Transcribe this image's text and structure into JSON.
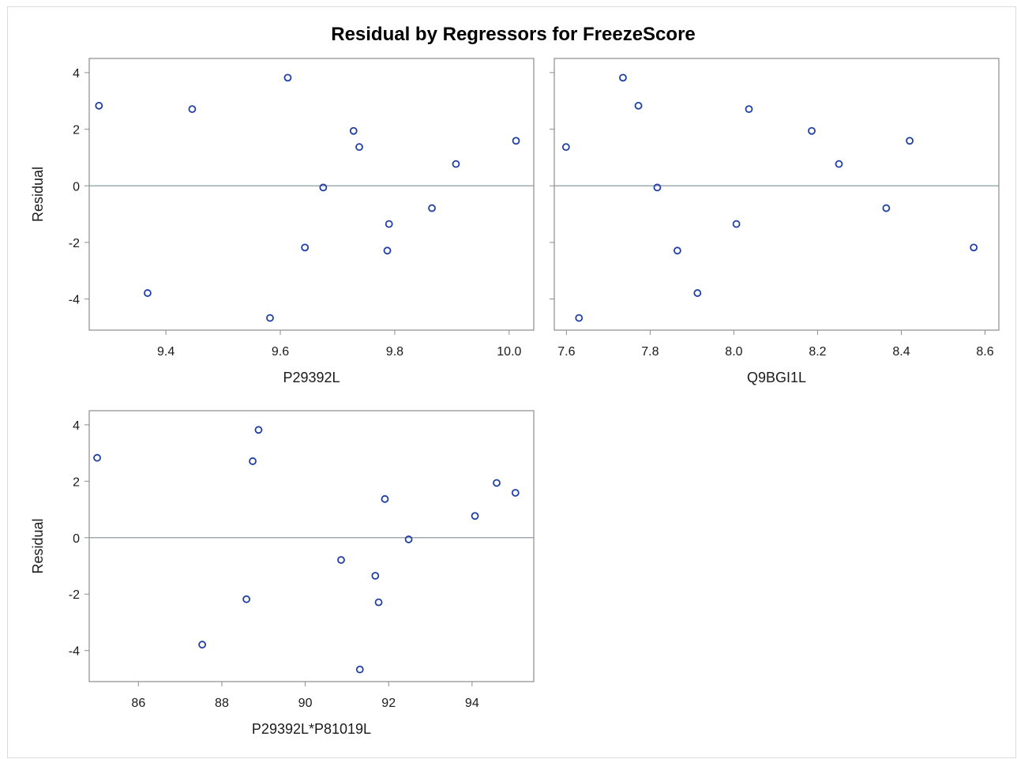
{
  "title": "Residual by Regressors for FreezeScore",
  "colors": {
    "marker": "#1f3fa6",
    "frame": "#8c8c8c",
    "refline": "#8c9aa0",
    "text": "#1a1a1a"
  },
  "chart_data": [
    {
      "type": "scatter",
      "xlabel": "P29392L",
      "ylabel": "Residual",
      "xlim": [
        9.266,
        10.043
      ],
      "ylim": [
        -5.1,
        4.5
      ],
      "xticks": [
        "9.4",
        "9.6",
        "9.8",
        "10.0"
      ],
      "yticks": [
        "4",
        "2",
        "0",
        "-2",
        "-4"
      ],
      "reference_y": 0,
      "points": [
        {
          "x": 9.283,
          "y": 2.83
        },
        {
          "x": 9.368,
          "y": -3.79
        },
        {
          "x": 9.446,
          "y": 2.71
        },
        {
          "x": 9.582,
          "y": -4.67
        },
        {
          "x": 9.613,
          "y": 3.82
        },
        {
          "x": 9.643,
          "y": -2.18
        },
        {
          "x": 9.675,
          "y": -0.06
        },
        {
          "x": 9.728,
          "y": 1.94
        },
        {
          "x": 9.738,
          "y": 1.37
        },
        {
          "x": 9.787,
          "y": -2.29
        },
        {
          "x": 9.79,
          "y": -1.35
        },
        {
          "x": 9.865,
          "y": -0.79
        },
        {
          "x": 9.907,
          "y": 0.77
        },
        {
          "x": 10.012,
          "y": 1.59
        }
      ]
    },
    {
      "type": "scatter",
      "xlabel": "Q9BGI1L",
      "ylabel": "Residual",
      "xlim": [
        7.571,
        8.633
      ],
      "ylim": [
        -5.1,
        4.5
      ],
      "xticks": [
        "7.6",
        "7.8",
        "8.0",
        "8.2",
        "8.4",
        "8.6"
      ],
      "yticks": [
        "4",
        "2",
        "0",
        "-2",
        "-4"
      ],
      "reference_y": 0,
      "points": [
        {
          "x": 7.599,
          "y": 1.37
        },
        {
          "x": 7.63,
          "y": -4.67
        },
        {
          "x": 7.735,
          "y": 3.82
        },
        {
          "x": 7.772,
          "y": 2.83
        },
        {
          "x": 7.817,
          "y": -0.06
        },
        {
          "x": 7.865,
          "y": -2.29
        },
        {
          "x": 7.913,
          "y": -3.79
        },
        {
          "x": 8.006,
          "y": -1.35
        },
        {
          "x": 8.036,
          "y": 2.71
        },
        {
          "x": 8.186,
          "y": 1.94
        },
        {
          "x": 8.251,
          "y": 0.77
        },
        {
          "x": 8.364,
          "y": -0.79
        },
        {
          "x": 8.42,
          "y": 1.59
        },
        {
          "x": 8.573,
          "y": -2.18
        }
      ]
    },
    {
      "type": "scatter",
      "xlabel": "P29392L*P81019L",
      "ylabel": "Residual",
      "xlim": [
        84.82,
        95.48
      ],
      "ylim": [
        -5.1,
        4.5
      ],
      "xticks": [
        "86",
        "88",
        "90",
        "92",
        "94"
      ],
      "yticks": [
        "4",
        "2",
        "0",
        "-2",
        "-4"
      ],
      "reference_y": 0,
      "points": [
        {
          "x": 85.01,
          "y": 2.83
        },
        {
          "x": 87.53,
          "y": -3.79
        },
        {
          "x": 88.59,
          "y": -2.18
        },
        {
          "x": 88.74,
          "y": 2.71
        },
        {
          "x": 88.88,
          "y": 3.82
        },
        {
          "x": 90.86,
          "y": -0.79
        },
        {
          "x": 91.31,
          "y": -4.67
        },
        {
          "x": 91.68,
          "y": -1.35
        },
        {
          "x": 91.76,
          "y": -2.29
        },
        {
          "x": 91.91,
          "y": 1.37
        },
        {
          "x": 92.48,
          "y": -0.06
        },
        {
          "x": 94.07,
          "y": 0.77
        },
        {
          "x": 94.59,
          "y": 1.94
        },
        {
          "x": 95.04,
          "y": 1.59
        }
      ]
    }
  ]
}
